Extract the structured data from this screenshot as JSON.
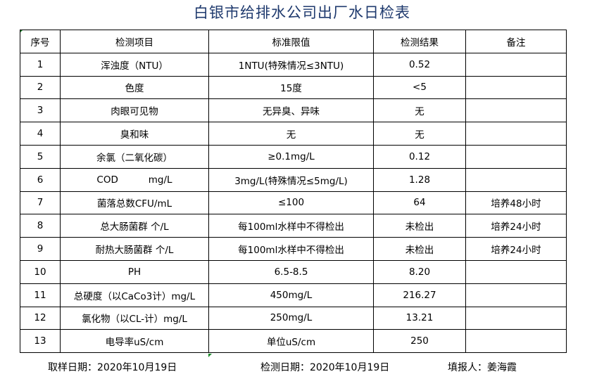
{
  "title": "白银市给排水公司出厂水日检表",
  "headers": [
    "序号",
    "检测项目",
    "标准限值",
    "检测结果",
    "备注"
  ],
  "rows": [
    [
      "1",
      "浑浊度（NTU）",
      "1NTU(特殊情况≤3NTU)",
      "0.52",
      ""
    ],
    [
      "2",
      "色度",
      "15度",
      "<5",
      ""
    ],
    [
      "3",
      "肉眼可见物",
      "无异臭、异味",
      "无",
      ""
    ],
    [
      "4",
      "臭和味",
      "无",
      "无",
      ""
    ],
    [
      "5",
      "余氯（二氧化碳）",
      "≥0.1mg/L",
      "0.12",
      ""
    ],
    [
      "6",
      "COD          mg/L",
      "3mg/L(特殊情况≤5mg/L)",
      "1.28",
      ""
    ],
    [
      "7",
      "菌落总数CFU/mL",
      "≤100",
      "64",
      "培养48小时"
    ],
    [
      "8",
      "总大肠菌群 个/L",
      "每100ml水样中不得检出",
      "未检出",
      "培养24小时"
    ],
    [
      "9",
      "耐热大肠菌群 个/L",
      "每100ml水样中不得检出",
      "未检出",
      "培养24小时"
    ],
    [
      "10",
      "PH",
      "6.5-8.5",
      "8.20",
      ""
    ],
    [
      "11",
      "总硬度（以CaCo3计）mg/L",
      "450mg/L",
      "216.27",
      ""
    ],
    [
      "12",
      "氯化物（以CL-计）mg/L",
      "250mg/L",
      "13.21",
      ""
    ],
    [
      "13",
      "电导率uS/cm",
      "单位uS/cm",
      "250",
      ""
    ]
  ],
  "footer": {
    "sample_date": "取样日期：2020年10月19日",
    "test_date": "检测日期：2020年10月19日",
    "reporter": "填报人：姜海霞"
  }
}
